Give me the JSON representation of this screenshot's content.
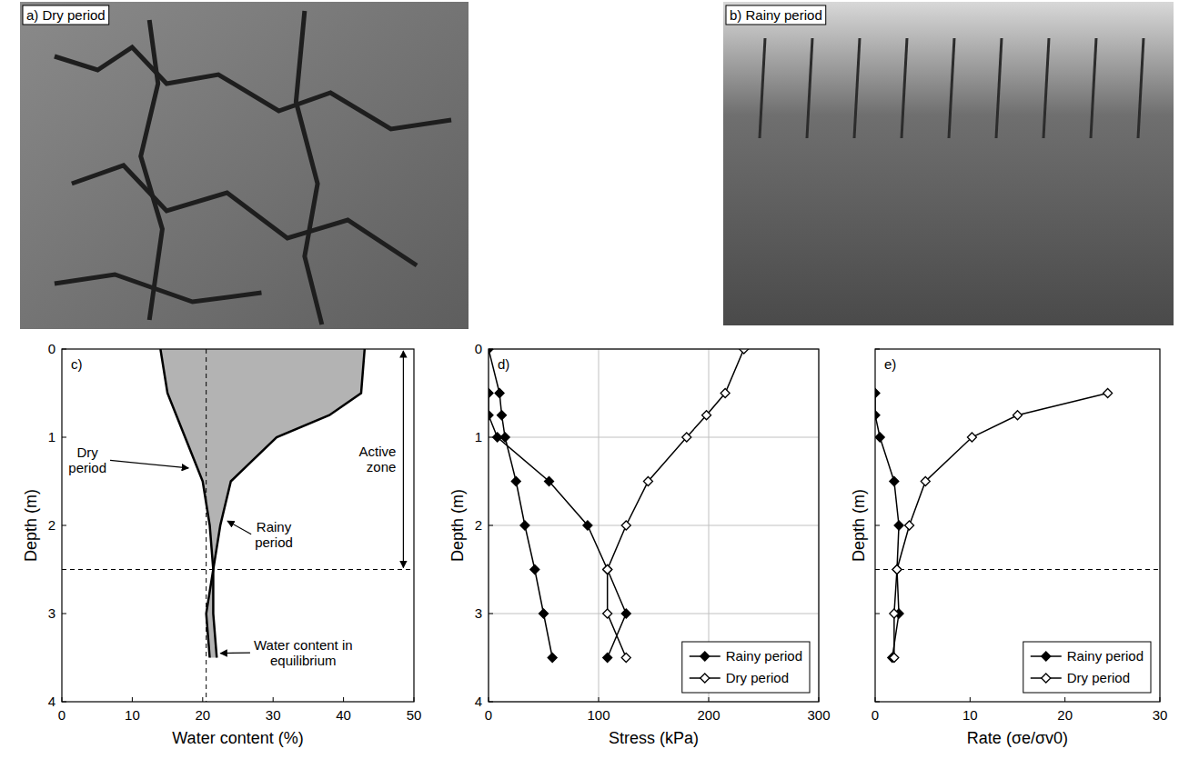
{
  "photos": [
    {
      "label": "a) Dry period"
    },
    {
      "label": "b) Rainy period"
    }
  ],
  "chart_data": [
    {
      "type": "area",
      "title": "c)",
      "x_label": "Water content (%)",
      "y_label": "Depth (m)",
      "xlim": [
        0,
        50
      ],
      "xticks": [
        0,
        10,
        20,
        30,
        40,
        50
      ],
      "ylim": [
        0,
        4
      ],
      "yticks": [
        0,
        1,
        2,
        3,
        4
      ],
      "grid": false,
      "color": "#b3b3b3",
      "series": [
        {
          "color": "#000000",
          "x": [
            14,
            15,
            17.5,
            20,
            21,
            21.5,
            20.5,
            21
          ],
          "y": [
            0,
            0.5,
            1,
            1.5,
            2,
            2.5,
            3,
            3.5
          ]
        },
        {
          "color": "#000000",
          "x": [
            43,
            42.5,
            38,
            30.5,
            24,
            22.5,
            21.5,
            21.5,
            22
          ],
          "y": [
            0,
            0.5,
            0.75,
            1,
            1.5,
            2,
            2.5,
            3,
            3.5
          ]
        }
      ],
      "hlines": [
        2.5
      ],
      "vlines": [
        20.5
      ],
      "annotations": [
        {
          "text": "Dry period",
          "x": 18.5,
          "y": 1.35
        },
        {
          "text": "Rainy period",
          "x": 23,
          "y": 1.95
        },
        {
          "text": "Active zone",
          "x": 48.5,
          "y": [
            0,
            2.5
          ]
        },
        {
          "text": "Water content in equilibrium",
          "x": 22,
          "y": 3.45
        }
      ]
    },
    {
      "type": "line",
      "title": "d)",
      "x_label": "Stress (kPa)",
      "y_label": "Depth (m)",
      "xlim": [
        0,
        300
      ],
      "xticks": [
        0,
        100,
        200,
        300
      ],
      "ylim": [
        0,
        4
      ],
      "yticks": [
        0,
        1,
        2,
        3,
        4
      ],
      "grid": true,
      "legend": "lower right",
      "series": [
        {
          "name": "Rainy period",
          "color": "#000000",
          "marker": "diamond",
          "x": [
            0,
            10,
            12,
            15,
            25,
            33,
            42,
            50,
            58,
            null,
            0,
            0,
            8,
            55,
            90,
            108,
            125,
            108
          ],
          "y": [
            0,
            0.5,
            0.75,
            1,
            1.5,
            2,
            2.5,
            3,
            3.5,
            null,
            0.5,
            0.75,
            1,
            1.5,
            2,
            2.5,
            3,
            3.5
          ]
        },
        {
          "name": "Dry period",
          "color": "#000000",
          "marker": "open-diamond",
          "x": [
            232,
            215,
            198,
            180,
            145,
            125,
            108,
            108,
            125
          ],
          "y": [
            0,
            0.5,
            0.75,
            1,
            1.5,
            2,
            2.5,
            3,
            3.5
          ]
        }
      ]
    },
    {
      "type": "line",
      "title": "e)",
      "x_label": "Rate (σe/σv0)",
      "y_label": "Depth (m)",
      "xlim": [
        0,
        30
      ],
      "xticks": [
        0,
        10,
        20,
        30
      ],
      "ylim": [
        0,
        4
      ],
      "yticks": [
        0,
        1,
        2,
        3,
        4
      ],
      "tick_labels": "x",
      "grid": false,
      "legend": "lower right",
      "hlines": [
        2.5
      ],
      "series": [
        {
          "name": "Rainy period",
          "color": "#000000",
          "marker": "diamond",
          "x": [
            0,
            0,
            0.5,
            2,
            2.5,
            2.3,
            2.5,
            1.8
          ],
          "y": [
            0.5,
            0.75,
            1,
            1.5,
            2,
            2.5,
            3,
            3.5
          ]
        },
        {
          "name": "Dry period",
          "color": "#000000",
          "marker": "open-diamond",
          "x": [
            24.5,
            15,
            10.2,
            5.3,
            3.6,
            2.3,
            2,
            2
          ],
          "y": [
            0.5,
            0.75,
            1,
            1.5,
            2,
            2.5,
            3,
            3.5
          ]
        }
      ]
    }
  ]
}
